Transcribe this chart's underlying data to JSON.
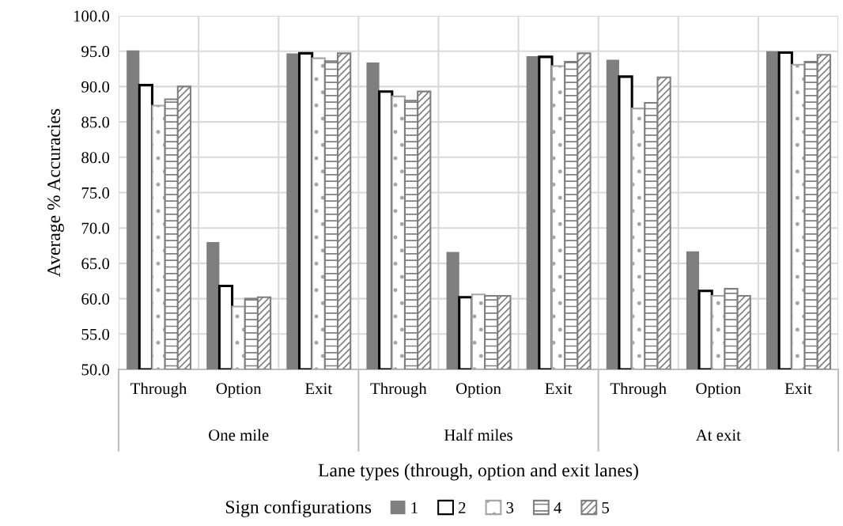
{
  "chart_data": {
    "type": "bar",
    "categories": [
      "Through",
      "Option",
      "Exit",
      "Through",
      "Option",
      "Exit",
      "Through",
      "Option",
      "Exit"
    ],
    "annotations": [
      "One mile",
      "Half miles",
      "At exit"
    ],
    "xlabel": "Lane types (through, option and exit lanes)",
    "ylabel": "Average % Accuracies",
    "legend_title": "Sign configurations",
    "legend": "bottom",
    "grid": true,
    "ylim": [
      50,
      100
    ],
    "yticks": [
      {
        "value": 50,
        "label": "50.0"
      },
      {
        "value": 55,
        "label": "55.0"
      },
      {
        "value": 60,
        "label": "60.0"
      },
      {
        "value": 65,
        "label": "65.0"
      },
      {
        "value": 70,
        "label": "70.0"
      },
      {
        "value": 75,
        "label": "75.0"
      },
      {
        "value": 80,
        "label": "80.0"
      },
      {
        "value": 85,
        "label": "85.0"
      },
      {
        "value": 90,
        "label": "90.0"
      },
      {
        "value": 95,
        "label": "95.0"
      },
      {
        "value": 100,
        "label": "100.0"
      }
    ],
    "series": [
      {
        "name": "1",
        "color": "#7f7f7f",
        "values": [
          95.1,
          68.0,
          94.7,
          93.4,
          66.6,
          94.3,
          93.8,
          66.7,
          95.0
        ]
      },
      {
        "name": "2",
        "color": "#000000",
        "values": [
          90.2,
          61.8,
          94.7,
          89.3,
          60.2,
          94.2,
          91.4,
          61.1,
          94.8
        ]
      },
      {
        "name": "3",
        "color": "#a6a6a6",
        "values": [
          87.3,
          58.9,
          94.0,
          88.6,
          60.6,
          92.9,
          86.9,
          60.4,
          93.1
        ]
      },
      {
        "name": "4",
        "color": "#7f7f7f",
        "values": [
          88.2,
          60.0,
          93.6,
          88.0,
          60.4,
          93.5,
          87.7,
          61.4,
          93.5
        ]
      },
      {
        "name": "5",
        "color": "#7f7f7f",
        "values": [
          90.0,
          60.2,
          94.7,
          89.3,
          60.4,
          94.7,
          91.3,
          60.4,
          94.5
        ]
      }
    ]
  }
}
